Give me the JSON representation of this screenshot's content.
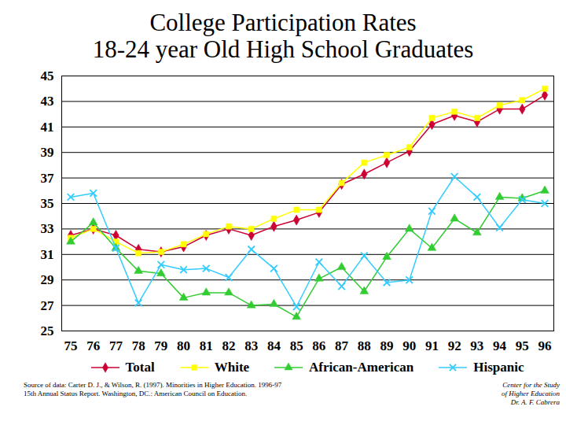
{
  "chart_data": {
    "type": "line",
    "title": "College Participation Rates",
    "subtitle": "18-24 year Old High School Graduates",
    "x": [
      75,
      76,
      77,
      78,
      79,
      80,
      81,
      82,
      83,
      84,
      85,
      86,
      87,
      88,
      89,
      90,
      91,
      92,
      93,
      94,
      95,
      96
    ],
    "series": [
      {
        "name": "Total",
        "color": "#cc0033",
        "marker": "diamond",
        "values": [
          32.5,
          33.0,
          32.5,
          31.4,
          31.2,
          31.6,
          32.5,
          33.0,
          32.5,
          33.2,
          33.7,
          34.3,
          36.5,
          37.3,
          38.2,
          39.1,
          41.2,
          41.9,
          41.4,
          42.4,
          42.4,
          43.5
        ]
      },
      {
        "name": "White",
        "color": "#ffff00",
        "marker": "square",
        "values": [
          32.3,
          33.0,
          32.0,
          31.1,
          31.2,
          31.8,
          32.6,
          33.2,
          33.0,
          33.8,
          34.5,
          34.5,
          36.6,
          38.2,
          38.8,
          39.4,
          41.7,
          42.2,
          41.7,
          42.7,
          43.1,
          44.0
        ]
      },
      {
        "name": "African-American",
        "color": "#33cc33",
        "marker": "triangle",
        "values": [
          32.0,
          33.5,
          31.5,
          29.7,
          29.5,
          27.6,
          28.0,
          28.0,
          27.0,
          27.1,
          26.1,
          29.1,
          30.0,
          28.1,
          30.8,
          33.0,
          31.5,
          33.8,
          32.7,
          35.5,
          35.4,
          36.0
        ]
      },
      {
        "name": "Hispanic",
        "color": "#33ccff",
        "marker": "times",
        "values": [
          35.5,
          35.8,
          31.5,
          27.2,
          30.2,
          29.8,
          29.9,
          29.2,
          31.4,
          29.9,
          26.9,
          30.4,
          28.5,
          30.9,
          28.8,
          29.0,
          34.4,
          37.1,
          35.5,
          33.1,
          35.3,
          35.0
        ]
      }
    ],
    "xlim": [
      74.6,
      96.4
    ],
    "xticks": [
      75,
      76,
      77,
      78,
      79,
      80,
      81,
      82,
      83,
      84,
      85,
      86,
      87,
      88,
      89,
      90,
      91,
      92,
      93,
      94,
      95,
      96
    ],
    "ylim": [
      25,
      45
    ],
    "yticks": [
      25,
      27,
      29,
      31,
      33,
      35,
      37,
      39,
      41,
      43,
      45
    ],
    "grid": true,
    "legend": "bottom",
    "annotations": [
      [
        "Source of data: Carter D. J., & Wilson, R. (1997). Minorities in Higher Education. 1996-97",
        "15th Annual Status Report. Washington, DC.: American Council on Education."
      ],
      [
        "Center for the Study",
        "of Higher Education",
        "Dr. A. F. Cabrera"
      ]
    ]
  }
}
